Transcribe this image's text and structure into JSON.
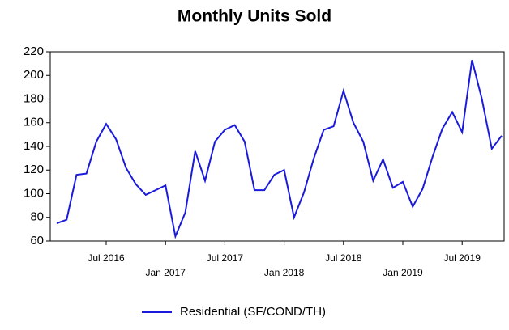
{
  "chart_data": {
    "type": "line",
    "title": "Monthly Units Sold",
    "categories": [
      null,
      null,
      null,
      null,
      null,
      "Jul 2016",
      null,
      null,
      null,
      null,
      null,
      "Jan 2017",
      null,
      null,
      null,
      null,
      null,
      "Jul 2017",
      null,
      null,
      null,
      null,
      null,
      "Jan 2018",
      null,
      null,
      null,
      null,
      null,
      "Jul 2018",
      null,
      null,
      null,
      null,
      null,
      "Jan 2019",
      null,
      null,
      null,
      null,
      null,
      "Jul 2019",
      null,
      null,
      null,
      null
    ],
    "series": [
      {
        "name": "Residential (SF/COND/TH)",
        "color": "#1a1adc",
        "values": [
          75,
          78,
          116,
          117,
          144,
          159,
          146,
          122,
          108,
          99,
          103,
          107,
          64,
          84,
          136,
          111,
          144,
          154,
          158,
          144,
          103,
          103,
          116,
          120,
          80,
          101,
          130,
          154,
          157,
          187,
          160,
          144,
          111,
          129,
          105,
          110,
          89,
          104,
          131,
          155,
          169,
          152,
          213,
          180,
          138,
          149
        ]
      }
    ],
    "ylim": [
      60,
      220
    ],
    "yticks": [
      60,
      80,
      100,
      120,
      140,
      160,
      180,
      200,
      220
    ]
  }
}
